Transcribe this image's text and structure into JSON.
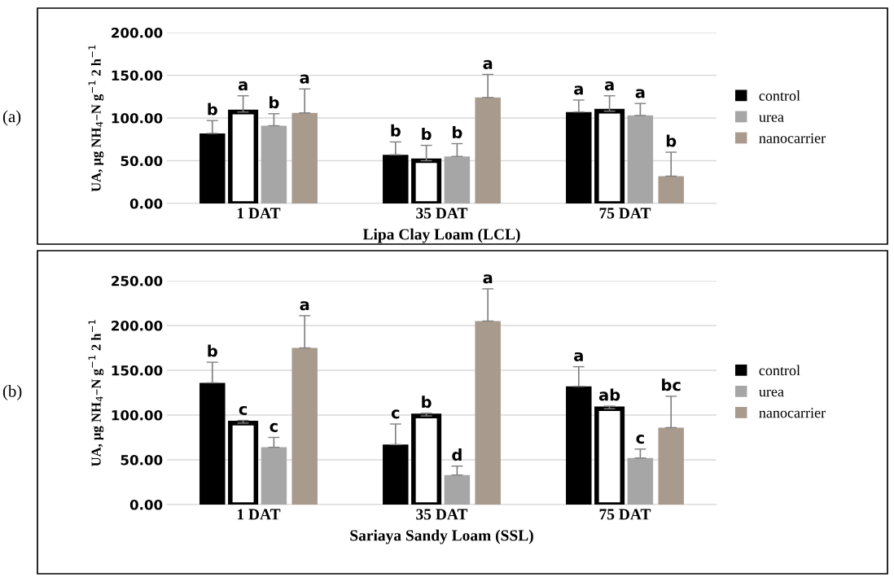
{
  "chart_data": [
    {
      "type": "bar",
      "categories": [
        "1 DAT",
        "35 DAT",
        "75 DAT"
      ],
      "xlabel": "Lipa Clay Loam (LCL)",
      "ylabel": "UA, μg NH$_{4}$–N g$^{−1}$ 2 h$^{−1}$",
      "ylim": [
        0,
        200
      ],
      "yticks": [
        {
          "value": 0,
          "label": "0.00"
        },
        {
          "value": 50,
          "label": "50.00"
        },
        {
          "value": 100,
          "label": "100.00"
        },
        {
          "value": 150,
          "label": "150.00"
        },
        {
          "value": 200,
          "label": "200.00"
        }
      ],
      "grid": "y",
      "legend": "right",
      "annotations": [
        "(a)"
      ],
      "series": [
        {
          "name": "control",
          "color": "#000000",
          "values": [
            82,
            57,
            107
          ],
          "errors": [
            [
              82,
              97
            ],
            [
              57,
              72
            ],
            [
              107,
              121
            ]
          ],
          "value_labels": [
            "b",
            "b",
            "a"
          ]
        },
        {
          "color": "#ffffff",
          "values": [
            107,
            50,
            108
          ],
          "errors": [
            [
              107,
              126
            ],
            [
              50,
              68
            ],
            [
              108,
              126
            ]
          ],
          "value_labels": [
            "a",
            "b",
            "a"
          ]
        },
        {
          "name": "urea",
          "color": "#a6a6a6",
          "values": [
            91,
            55,
            103
          ],
          "errors": [
            [
              91,
              105
            ],
            [
              55,
              70
            ],
            [
              103,
              117
            ]
          ],
          "value_labels": [
            "b",
            "b",
            "a"
          ]
        },
        {
          "name": "nanocarrier",
          "color": "#a89a8c",
          "values": [
            106,
            124,
            32
          ],
          "errors": [
            [
              106,
              134
            ],
            [
              124,
              151
            ],
            [
              32,
              60
            ]
          ],
          "value_labels": [
            "a",
            "a",
            "b"
          ]
        }
      ]
    },
    {
      "type": "bar",
      "categories": [
        "1 DAT",
        "35 DAT",
        "75 DAT"
      ],
      "xlabel": "Sariaya Sandy Loam (SSL)",
      "ylabel": "UA, μg NH$_{4}$–N g$^{−1}$ 2 h$^{−1}$",
      "ylim": [
        0,
        250
      ],
      "yticks": [
        {
          "value": 0,
          "label": "0.00"
        },
        {
          "value": 50,
          "label": "50.00"
        },
        {
          "value": 100,
          "label": "100.00"
        },
        {
          "value": 150,
          "label": "150.00"
        },
        {
          "value": 200,
          "label": "200.00"
        },
        {
          "value": 250,
          "label": "250.00"
        }
      ],
      "grid": "y",
      "legend": "right",
      "annotations": [
        "(b)"
      ],
      "series": [
        {
          "name": "control",
          "color": "#000000",
          "values": [
            136,
            67,
            132
          ],
          "errors": [
            [
              136,
              159
            ],
            [
              67,
              90
            ],
            [
              132,
              154
            ]
          ],
          "value_labels": [
            "b",
            "c",
            "a"
          ]
        },
        {
          "color": "#ffffff",
          "values": [
            91,
            99,
            107
          ],
          "errors": [
            [
              91,
              94
            ],
            [
              99,
              102
            ],
            [
              107,
              110
            ]
          ],
          "value_labels": [
            "c",
            "b",
            "ab"
          ]
        },
        {
          "name": "urea",
          "color": "#a6a6a6",
          "values": [
            64,
            33,
            52
          ],
          "errors": [
            [
              64,
              75
            ],
            [
              33,
              43
            ],
            [
              52,
              62
            ]
          ],
          "value_labels": [
            "c",
            "d",
            "c"
          ]
        },
        {
          "name": "nanocarrier",
          "color": "#a89a8c",
          "values": [
            175,
            205,
            86
          ],
          "errors": [
            [
              175,
              211
            ],
            [
              205,
              241
            ],
            [
              86,
              121
            ]
          ],
          "value_labels": [
            "a",
            "a",
            "bc"
          ]
        }
      ]
    }
  ]
}
